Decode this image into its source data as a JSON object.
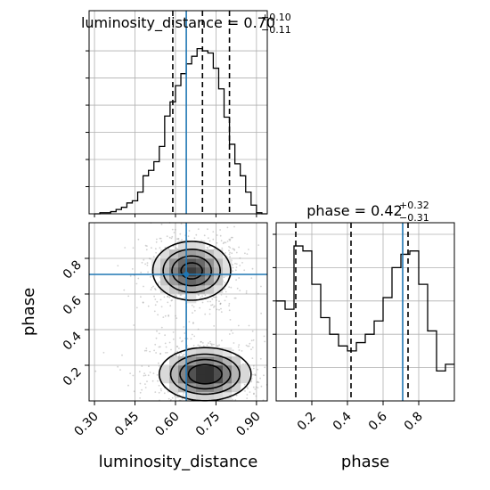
{
  "chart_data": {
    "type": "corner",
    "parameters": [
      "luminosity_distance",
      "phase"
    ],
    "truths": {
      "luminosity_distance": 0.64,
      "phase": 0.71
    },
    "panels": [
      {
        "id": "hist_luminosity_distance",
        "type": "histogram",
        "title_name": "luminosity_distance",
        "title_value": "0.70",
        "title_err_plus": "+0.10",
        "title_err_minus": "−0.11",
        "bin_edges": [
          0.3,
          0.32,
          0.34,
          0.36,
          0.38,
          0.4,
          0.42,
          0.44,
          0.46,
          0.48,
          0.5,
          0.52,
          0.54,
          0.56,
          0.58,
          0.6,
          0.62,
          0.64,
          0.66,
          0.68,
          0.7,
          0.72,
          0.74,
          0.76,
          0.78,
          0.8,
          0.82,
          0.84,
          0.86,
          0.88,
          0.9,
          0.92,
          0.94
        ],
        "counts": [
          0,
          1,
          1,
          2,
          4,
          6,
          10,
          12,
          20,
          35,
          40,
          48,
          62,
          90,
          103,
          118,
          129,
          138,
          145,
          152,
          150,
          148,
          134,
          115,
          89,
          64,
          46,
          35,
          20,
          8,
          1,
          0
        ],
        "quantiles": [
          0.59,
          0.7,
          0.8
        ],
        "xlim": [
          0.28,
          0.94
        ]
      },
      {
        "id": "hist_phase",
        "type": "histogram",
        "title_name": "phase",
        "title_value": "0.42",
        "title_err_plus": "+0.32",
        "title_err_minus": "−0.31",
        "bin_edges": [
          0.0,
          0.05,
          0.1,
          0.15,
          0.2,
          0.25,
          0.3,
          0.35,
          0.4,
          0.45,
          0.5,
          0.55,
          0.6,
          0.65,
          0.7,
          0.75,
          0.8,
          0.85,
          0.9,
          0.95,
          1.0
        ],
        "counts": [
          60,
          55,
          93,
          90,
          70,
          50,
          40,
          33,
          30,
          35,
          40,
          48,
          62,
          80,
          88,
          90,
          70,
          42,
          18,
          22
        ],
        "quantiles": [
          0.11,
          0.42,
          0.74
        ],
        "xlim": [
          0.0,
          1.0
        ],
        "ticks": [
          0.2,
          0.4,
          0.6,
          0.8
        ],
        "xlabel": "phase"
      },
      {
        "id": "scatter_2d",
        "type": "2d-density",
        "x_param": "luminosity_distance",
        "y_param": "phase",
        "xlim": [
          0.28,
          0.94
        ],
        "ylim": [
          0.0,
          1.0
        ],
        "x_ticks": [
          "0.30",
          "0.45",
          "0.60",
          "0.75",
          "0.90"
        ],
        "x_tick_values": [
          0.3,
          0.45,
          0.6,
          0.75,
          0.9
        ],
        "y_ticks": [
          "0.2",
          "0.4",
          "0.6",
          "0.8"
        ],
        "y_tick_values": [
          0.2,
          0.4,
          0.6,
          0.8
        ],
        "xlabel": "luminosity_distance",
        "ylabel": "phase",
        "modes": [
          {
            "x": 0.66,
            "y": 0.73,
            "sx": 0.07,
            "sy": 0.08,
            "w": 1.0
          },
          {
            "x": 0.71,
            "y": 0.15,
            "sx": 0.08,
            "sy": 0.07,
            "w": 1.15
          }
        ]
      }
    ]
  }
}
